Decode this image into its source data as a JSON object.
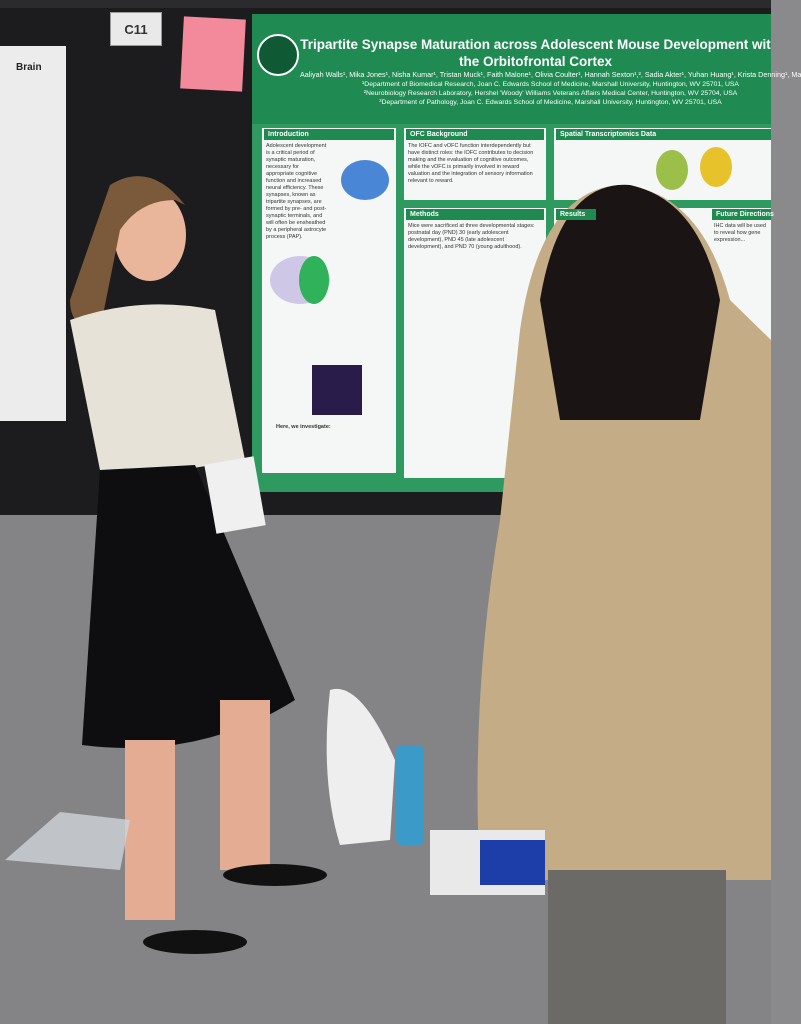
{
  "booth_sign": "C11",
  "side_poster": {
    "label": "Brain"
  },
  "poster": {
    "title_lines": [
      "Tripartite Synapse Maturation across Adolescent Mouse Development wit",
      "the Orbitofrontal Cortex"
    ],
    "authors": "Aaliyah Walls¹, Mika Jones¹, Nisha Kumar¹, Tristan Muck¹, Faith Malone¹, Olivia Coulter¹, Hannah Sexton¹,², Sadia Akter¹, Yuhan Huang¹, Krista Denning¹, Ma",
    "affiliations": [
      "¹Department of Biomedical Research, Joan C. Edwards School of Medicine, Marshall University, Huntington, WV 25701, USA",
      "²Neurobiology Research Laboratory, Hershel 'Woody' Williams Veterans Affairs Medical Center, Huntington, WV 25704, USA",
      "³Department of Pathology, Joan C. Edwards School of Medicine, Marshall University, Huntington, WV 25701, USA"
    ],
    "sections": [
      {
        "heading": "Introduction",
        "text": "Adolescent development is a critical period of synaptic maturation, necessary for appropriate cognitive function and increased neural efficiency. These synapses, known as tripartite synapses, are formed by pre- and post-synaptic terminals, and will often be ensheathed by a peripheral astrocyte process (PAP)."
      },
      {
        "heading": "OFC Background",
        "text": "The lOFC and vOFC function interdependently but have distinct roles: the lOFC contributes to decision making and the evaluation of cognitive outcomes, while the vOFC is primarily involved in reward valuation and the integration of sensory information relevant to reward."
      },
      {
        "heading": "Spatial Transcriptomics Data",
        "text": ""
      },
      {
        "heading": "Methods",
        "text": "Mice were sacrificed at three developmental stages: postnatal day (PND) 30 (early adolescent development), PND 45 (late adolescent development), and PND 70 (young adulthood)."
      },
      {
        "heading": "Results",
        "text": ""
      },
      {
        "heading": "Future Directions",
        "text": "IHC data will be used to reveal how gene expression..."
      }
    ],
    "investigate": "Here, we investigate:"
  }
}
